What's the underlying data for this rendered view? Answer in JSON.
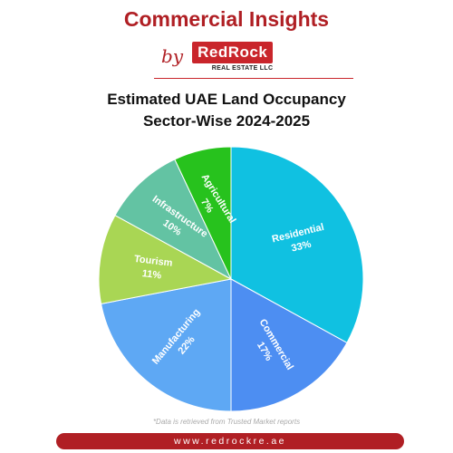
{
  "header": {
    "title": "Commercial Insights",
    "by": "by",
    "brand_name": "RedRock",
    "brand_sub": "REAL ESTATE LLC"
  },
  "chart_data": {
    "type": "pie",
    "title_lines": [
      "Estimated UAE Land Occupancy",
      "Sector-Wise 2024-2025"
    ],
    "slices": [
      {
        "label": "Residential",
        "value": 33,
        "display": "33%",
        "color": "#10c1e1"
      },
      {
        "label": "Commercial",
        "value": 17,
        "display": "17%",
        "color": "#4d8ef2"
      },
      {
        "label": "Manufacturing",
        "value": 22,
        "display": "22%",
        "color": "#5ea8f4"
      },
      {
        "label": "Tourism",
        "value": 11,
        "display": "11%",
        "color": "#a9d654"
      },
      {
        "label": "Infrastructure",
        "value": 10,
        "display": "10%",
        "color": "#63c3a3"
      },
      {
        "label": "Agricultural",
        "value": 7,
        "display": "7%",
        "color": "#27c21d"
      }
    ]
  },
  "footnote": "*Data is retrieved from Trusted Market reports",
  "footer": {
    "url": "www.redrockre.ae"
  }
}
